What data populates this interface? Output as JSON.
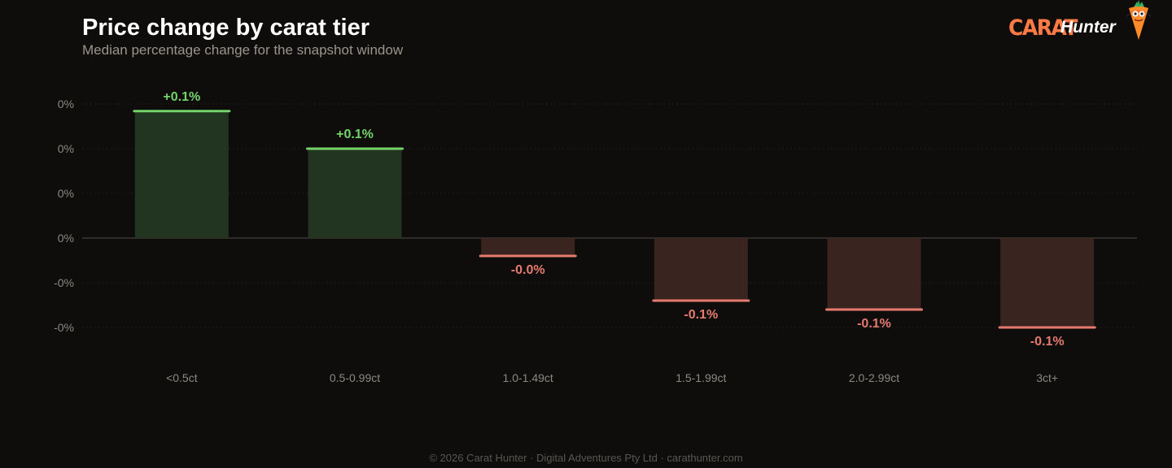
{
  "header": {
    "title": "Price change by carat tier",
    "subtitle": "Median percentage change for the snapshot window"
  },
  "brand": {
    "logo_word1": "CARAT",
    "logo_word2": "Hunter",
    "mascot_icon": "carrot-mascot-icon"
  },
  "footer": {
    "text": "© 2026 Carat Hunter · Digital Adventures Pty Ltd · carathunter.com"
  },
  "colors": {
    "background": "#0e0d0c",
    "positive": "#74d46a",
    "positive_fill": "#223520",
    "negative": "#e57a6e",
    "negative_fill": "#3a2420",
    "axis_text": "#8d8880",
    "brand_accent": "#ff7a45"
  },
  "chart_data": {
    "type": "bar",
    "categories": [
      "<0.5ct",
      "0.5-0.99ct",
      "1.0-1.49ct",
      "1.5-1.99ct",
      "2.0-2.99ct",
      "3ct+"
    ],
    "values": [
      0.142,
      0.1,
      -0.02,
      -0.07,
      -0.08,
      -0.1
    ],
    "data_labels": [
      "+0.1%",
      "+0.1%",
      "-0.0%",
      "-0.1%",
      "-0.1%",
      "-0.1%"
    ],
    "y_ticks": [
      0.15,
      0.1,
      0.05,
      0,
      -0.05,
      -0.1
    ],
    "y_tick_labels": [
      "0%",
      "0%",
      "0%",
      "0%",
      "-0%",
      "-0%"
    ],
    "ylim": [
      -0.1,
      0.15
    ],
    "grid": true,
    "legend": "none"
  }
}
